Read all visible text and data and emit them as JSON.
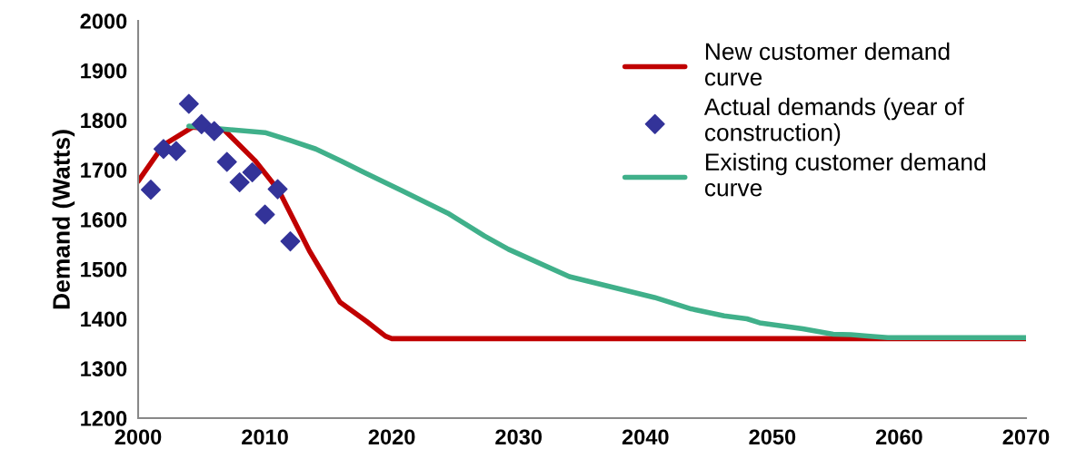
{
  "chart_data": {
    "type": "line",
    "ylabel": "Demand (Watts)",
    "xlim": [
      2000,
      2070
    ],
    "xticks": [
      2000,
      2010,
      2020,
      2030,
      2040,
      2050,
      2060,
      2070
    ],
    "ylim": [
      1200,
      2000
    ],
    "yticks": [
      1200,
      1300,
      1400,
      1500,
      1600,
      1700,
      1800,
      1900,
      2000
    ],
    "grid": false,
    "legend": "top right",
    "series": [
      {
        "name": "New customer demand curve",
        "color": "#c00000",
        "marker": "none",
        "line_style": "solid",
        "x": [
          2000,
          2002,
          2004.3,
          2006.8,
          2009.2,
          2011.1,
          2013.5,
          2015.9,
          2018,
          2019.5,
          2020,
          2030,
          2040,
          2050,
          2060,
          2070
        ],
        "values": [
          1677,
          1750,
          1786,
          1780,
          1719,
          1658,
          1537,
          1434,
          1395,
          1365,
          1360,
          1360,
          1360,
          1360,
          1360,
          1360
        ]
      },
      {
        "name": "Actual demands (year of construction)",
        "type": "scatter",
        "color": "#333399",
        "marker": "diamond",
        "x": [
          2001,
          2002,
          2003,
          2004,
          2005,
          2006,
          2007,
          2008,
          2009,
          2010,
          2011,
          2012
        ],
        "values": [
          1660,
          1742,
          1738,
          1833,
          1792,
          1778,
          1716,
          1675,
          1695,
          1610,
          1661,
          1556
        ]
      },
      {
        "name": "Existing customer demand curve",
        "color": "#40b08a",
        "marker": "none",
        "line_style": "solid",
        "x": [
          2004,
          2010,
          2012,
          2014,
          2016,
          2017.8,
          2020.8,
          2024.4,
          2027.3,
          2029.2,
          2034,
          2040.7,
          2043.6,
          2046.2,
          2048,
          2049,
          2052.4,
          2054.8,
          2056.2,
          2057.7,
          2059.1,
          2070
        ],
        "values": [
          1788,
          1775,
          1759,
          1742,
          1718,
          1695,
          1658,
          1613,
          1567,
          1540,
          1485,
          1443,
          1420,
          1406,
          1400,
          1392,
          1380,
          1369,
          1368,
          1365,
          1362,
          1362
        ]
      }
    ]
  }
}
